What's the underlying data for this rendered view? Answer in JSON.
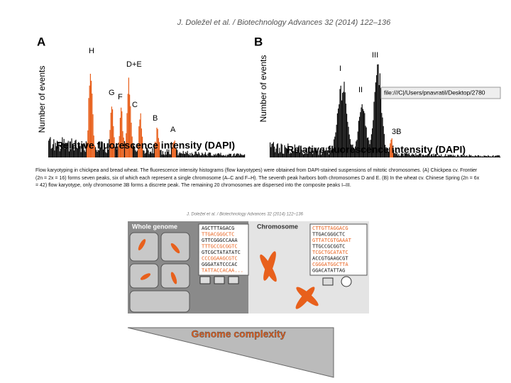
{
  "header": "J. Doležel et al. / Biotechnology Advances 32 (2014) 122–136",
  "panel_a": {
    "label": "A",
    "y_label": "Number of events",
    "x_label": "Relative fluorescence intensity (DAPI)",
    "peaks": [
      "H",
      "D+E",
      "G",
      "F",
      "C",
      "B",
      "A"
    ]
  },
  "panel_b": {
    "label": "B",
    "y_label": "Number of events",
    "x_label": "Relative fluorescence intensity (DAPI)",
    "peaks": [
      "I",
      "II",
      "III",
      "3B"
    ],
    "tooltip": "file:///C|/Users/pnavratil/Desktop/2780"
  },
  "caption": "Flow karyotyping in chickpea and bread wheat. The fluorescence intensity histograms (flow karyotypes) were obtained from DAPI-stained suspensions of mitotic chromosomes. (A) Chickpea cv. Frontier (2n = 2x = 16) forms seven peaks, six of which each represent a single chromosome (A–C and F–H). The seventh peak harbors both chromosomes D and E. (B) In the wheat cv. Chinese Spring (2n = 6x = 42) flow karyotype, only chromosome 3B forms a discrete peak. The remaining 20 chromosomes are dispersed into the composite peaks I–III.",
  "figure2": {
    "header": "J. Doležel et al. / Biotechnology Advances 32 (2014) 122–136",
    "whole_genome": "Whole genome",
    "chromosome": "Chromosome",
    "genome_sequence": [
      "AGCTTTAGACG",
      "TTGACGGGCTC",
      "GTTCGGGCCAAA",
      "TTTGCCGCGGTC",
      "GTCGCTATATATC",
      "CCCGGAAGCGTC",
      "GGGATATCCCAC",
      "TATTACCACAA..."
    ],
    "chromosome_sequence": [
      "CTTGTTAGGACG",
      "TTGACGGGCTC",
      "GTTATCGTGAAAT",
      "TTGCCGCGGTC",
      "TCGCTGCATATC",
      "ACCGTGAAGCGT",
      "CGGGATGGCTTA",
      "GGACATATTAG"
    ],
    "complexity": "Genome complexity"
  }
}
